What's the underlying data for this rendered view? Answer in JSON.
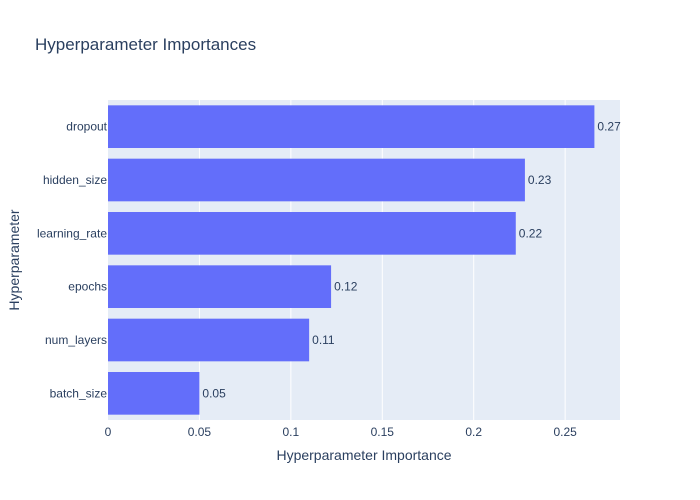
{
  "chart_data": {
    "type": "bar",
    "orientation": "horizontal",
    "title": "Hyperparameter Importances",
    "xlabel": "Hyperparameter Importance",
    "ylabel": "Hyperparameter",
    "categories": [
      "dropout",
      "hidden_size",
      "learning_rate",
      "epochs",
      "num_layers",
      "batch_size"
    ],
    "values": [
      0.266,
      0.228,
      0.223,
      0.122,
      0.11,
      0.05
    ],
    "value_labels": [
      "0.27",
      "0.23",
      "0.22",
      "0.12",
      "0.11",
      "0.05"
    ],
    "xlim": [
      0,
      0.28
    ],
    "xticks": [
      0,
      0.05,
      0.1,
      0.15,
      0.2,
      0.25
    ],
    "xtick_labels": [
      "0",
      "0.05",
      "0.1",
      "0.15",
      "0.2",
      "0.25"
    ],
    "grid": true,
    "legend": false
  },
  "colors": {
    "bar": "#636efa",
    "plot_background": "#e5ecf6",
    "gridline": "#ffffff",
    "text": "#2a3f5f",
    "tick_text": "#2a3f5f"
  }
}
